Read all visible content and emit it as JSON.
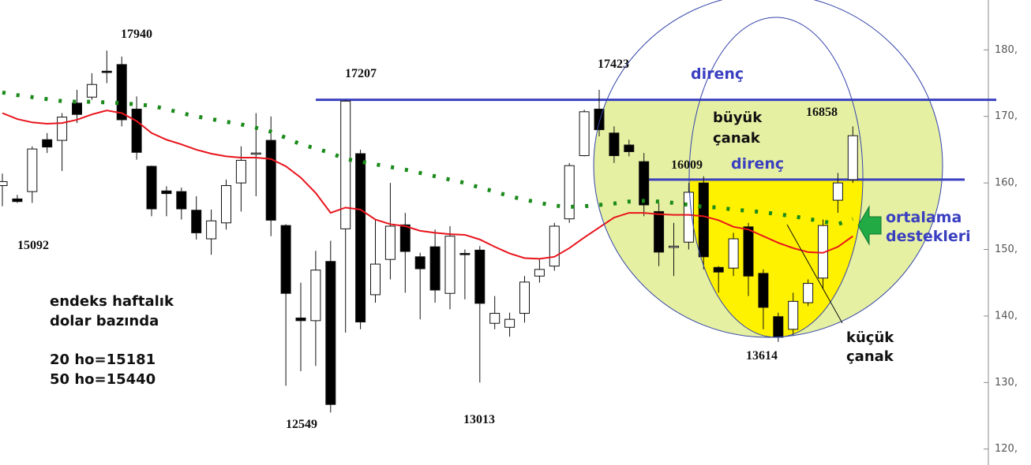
{
  "chart_data": {
    "type": "candlestick",
    "open": [
      159.6,
      157.6,
      158.7,
      166.5,
      166.4,
      172.0,
      172.9,
      176.8,
      177.8,
      171.1,
      162.5,
      158.8,
      158.7,
      155.9,
      151.6,
      154.0,
      160.0,
      164.5,
      166.4,
      153.6,
      139.7,
      139.3,
      148.2,
      153.1,
      164.4,
      143.2,
      148.5,
      153.7,
      148.9,
      150.4,
      143.4,
      149.4,
      149.9,
      138.9,
      138.3,
      140.4,
      146.0,
      147.5,
      154.6,
      164.1,
      171.1,
      167.5,
      165.7,
      163.2,
      155.7,
      150.3,
      151.1,
      160.0,
      147.3,
      147.2,
      153.4,
      146.4,
      139.9,
      138.0,
      142.0,
      145.7,
      157.4,
      160.5
    ],
    "high": [
      161.4,
      158.2,
      165.5,
      167.5,
      170.5,
      174.0,
      176.5,
      179.9,
      179.0,
      173.0,
      162.6,
      159.5,
      159.3,
      158.0,
      156.0,
      160.5,
      165.5,
      170.5,
      170.0,
      153.8,
      145.0,
      149.8,
      151.3,
      172.5,
      165.0,
      154.5,
      160.0,
      155.5,
      149.5,
      153.0,
      153.5,
      150.0,
      150.5,
      143.0,
      140.5,
      146.0,
      148.5,
      154.0,
      163.0,
      171.0,
      174.0,
      168.5,
      166.5,
      164.5,
      157.0,
      154.0,
      160.0,
      161.0,
      147.5,
      152.5,
      154.0,
      147.0,
      140.5,
      143.5,
      145.5,
      154.5,
      161.5,
      168.5
    ],
    "low": [
      156.5,
      157.0,
      157.0,
      164.5,
      161.8,
      169.0,
      172.5,
      175.0,
      168.5,
      163.5,
      155.0,
      155.0,
      154.5,
      151.5,
      149.2,
      153.0,
      155.7,
      158.0,
      152.0,
      129.5,
      131.7,
      132.5,
      125.5,
      137.5,
      138.0,
      142.0,
      145.5,
      143.5,
      139.5,
      142.0,
      141.0,
      142.5,
      130.0,
      138.0,
      136.9,
      139.0,
      145.0,
      146.8,
      154.0,
      164.0,
      167.0,
      163.0,
      164.0,
      155.0,
      147.5,
      146.0,
      150.0,
      147.0,
      143.5,
      146.0,
      143.0,
      138.0,
      136.1,
      137.0,
      141.5,
      144.0,
      155.5,
      160.0
    ],
    "close": [
      160.2,
      157.2,
      165.1,
      165.4,
      169.9,
      170.3,
      174.8,
      176.6,
      169.5,
      164.6,
      156.1,
      158.4,
      156.1,
      152.5,
      154.3,
      159.6,
      163.4,
      164.5,
      154.4,
      143.4,
      139.3,
      146.9,
      126.7,
      172.3,
      139.1,
      147.8,
      153.5,
      149.7,
      147.1,
      143.9,
      152.0,
      149.3,
      141.9,
      140.4,
      139.5,
      145.1,
      147.0,
      153.5,
      162.6,
      170.7,
      168.0,
      164.1,
      164.7,
      156.7,
      149.6,
      150.5,
      158.6,
      148.9,
      146.6,
      151.6,
      146.0,
      141.3,
      136.8,
      142.2,
      144.9,
      153.6,
      160.0,
      167.1
    ],
    "up_color": "#ffffff",
    "down_color": "#000000",
    "lines": [
      {
        "color": "#e8141c",
        "style": "solid",
        "values": [
          170.5,
          169.6,
          169.1,
          168.9,
          169.0,
          169.5,
          170.3,
          170.9,
          170.5,
          169.3,
          167.5,
          166.5,
          165.8,
          165.0,
          164.4,
          164.0,
          163.8,
          163.8,
          163.6,
          162.5,
          160.8,
          158.5,
          155.5,
          156.3,
          156.0,
          154.5,
          153.8,
          153.5,
          152.8,
          152.5,
          152.3,
          152.2,
          151.5,
          150.4,
          149.4,
          148.7,
          148.6,
          148.9,
          150.2,
          151.8,
          153.3,
          154.8,
          155.5,
          155.5,
          155.3,
          155.2,
          155.2,
          155.0,
          154.4,
          153.4,
          153.0,
          152.0,
          151.0,
          150.2,
          149.6,
          149.5,
          150.4,
          152.0
        ]
      },
      {
        "color": "#1a8a1a",
        "style": "dotted",
        "values": [
          173.6,
          173.2,
          172.9,
          172.6,
          172.3,
          172.2,
          172.2,
          172.1,
          172.0,
          171.8,
          171.6,
          171.1,
          170.5,
          170.0,
          169.6,
          169.2,
          168.8,
          168.3,
          167.7,
          166.8,
          165.8,
          165.2,
          164.5,
          163.6,
          163.2,
          162.8,
          162.4,
          162.0,
          161.5,
          161.0,
          160.5,
          160.0,
          159.3,
          158.7,
          158.0,
          157.5,
          157.0,
          156.6,
          156.4,
          156.5,
          156.7,
          156.9,
          157.2,
          157.3,
          157.2,
          157.0,
          156.7,
          156.4,
          156.3,
          156.0,
          155.8,
          155.6,
          155.3,
          155.0,
          154.6,
          154.2,
          153.8,
          154.6
        ]
      }
    ],
    "hlines": [
      {
        "value": 172.5,
        "color": "#3a3fc0"
      },
      {
        "value": 160.5,
        "color": "#3a3fc0"
      }
    ],
    "ylim": [
      117.6,
      187.5
    ],
    "yticks": [
      {
        "value": 120,
        "label": "120,"
      },
      {
        "value": 130,
        "label": "130,"
      },
      {
        "value": 140,
        "label": "140,"
      },
      {
        "value": 150,
        "label": "150,"
      },
      {
        "value": 160,
        "label": "160,"
      },
      {
        "value": 170,
        "label": "170,"
      },
      {
        "value": 180,
        "label": "180,"
      }
    ],
    "annotations": [
      "17940",
      "15092",
      "17207",
      "12549",
      "13013",
      "17423",
      "16009",
      "16858",
      "13614",
      "direnç",
      "direnç",
      "büyük",
      "çanak",
      "küçük",
      "çanak",
      "ortalama",
      "destekleri",
      "endeks haftalık",
      "dolar bazında",
      "20 ho=15181",
      "50 ho=15440"
    ]
  }
}
